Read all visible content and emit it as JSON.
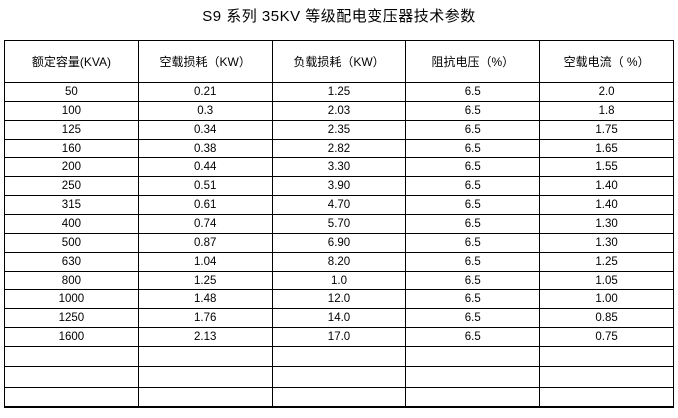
{
  "title": "S9 系列 35KV 等级配电变压器技术参数",
  "table": {
    "columns": [
      "额定容量(KVA)",
      "空载损耗（KW）",
      "负载损耗（KW）",
      "阻抗电压（%）",
      "空载电流（ %）"
    ],
    "rows": [
      [
        "50",
        "0.21",
        "1.25",
        "6.5",
        "2.0"
      ],
      [
        "100",
        "0.3",
        "2.03",
        "6.5",
        "1.8"
      ],
      [
        "125",
        "0.34",
        "2.35",
        "6.5",
        "1.75"
      ],
      [
        "160",
        "0.38",
        "2.82",
        "6.5",
        "1.65"
      ],
      [
        "200",
        "0.44",
        "3.30",
        "6.5",
        "1.55"
      ],
      [
        "250",
        "0.51",
        "3.90",
        "6.5",
        "1.40"
      ],
      [
        "315",
        "0.61",
        "4.70",
        "6.5",
        "1.40"
      ],
      [
        "400",
        "0.74",
        "5.70",
        "6.5",
        "1.30"
      ],
      [
        "500",
        "0.87",
        "6.90",
        "6.5",
        "1.30"
      ],
      [
        "630",
        "1.04",
        "8.20",
        "6.5",
        "1.25"
      ],
      [
        "800",
        "1.25",
        "1.0",
        "6.5",
        "1.05"
      ],
      [
        "1000",
        "1.48",
        "12.0",
        "6.5",
        "1.00"
      ],
      [
        "1250",
        "1.76",
        "14.0",
        "6.5",
        "0.85"
      ],
      [
        "1600",
        "2.13",
        "17.0",
        "6.5",
        "0.75"
      ]
    ],
    "empty_row_count": 3
  }
}
